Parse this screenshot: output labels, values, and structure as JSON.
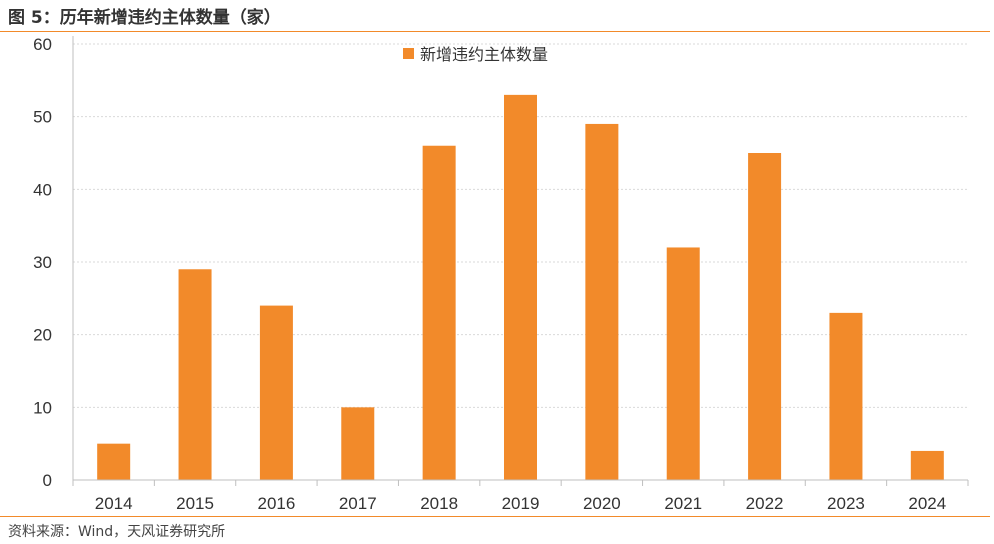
{
  "header": {
    "title": "图 5：历年新增违约主体数量（家）"
  },
  "footer": {
    "source": "资料来源：Wind，天风证券研究所"
  },
  "chart_data": {
    "type": "bar",
    "categories": [
      "2014",
      "2015",
      "2016",
      "2017",
      "2018",
      "2019",
      "2020",
      "2021",
      "2022",
      "2023",
      "2024"
    ],
    "series": [
      {
        "name": "新增违约主体数量",
        "values": [
          5,
          29,
          24,
          10,
          46,
          53,
          49,
          32,
          45,
          23,
          4
        ],
        "color": "#f28a2a"
      }
    ],
    "ylim": [
      0,
      60
    ],
    "yticks": [
      0,
      10,
      20,
      30,
      40,
      50,
      60
    ],
    "grid": true,
    "legend_position": "top-center"
  }
}
